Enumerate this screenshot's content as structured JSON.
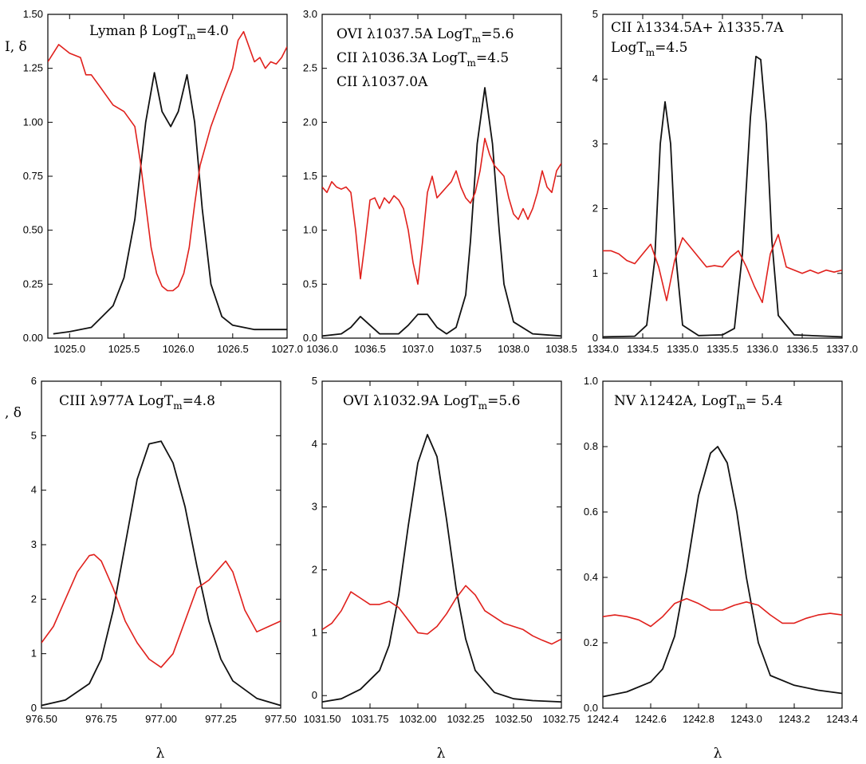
{
  "figure": {
    "ylabel_row1": "I,  δ",
    "ylabel_row2": ",  δ",
    "xlabel": "λ",
    "curve_colors": {
      "intensity": "#111111",
      "delta": "#e0201c"
    }
  },
  "chart_data": [
    {
      "type": "line",
      "annotation": [
        "Lyman β  LogT_m=4.0"
      ],
      "xlim": [
        1024.8,
        1027.0
      ],
      "ylim": [
        0,
        1.5
      ],
      "xticks": [
        1025.0,
        1025.5,
        1026.0,
        1026.5,
        1027.0
      ],
      "xtick_labels": [
        "1025.0",
        "1025.5",
        "1026.0",
        "1026.5",
        "1027.0"
      ],
      "yticks": [
        0,
        0.25,
        0.5,
        0.75,
        1.0,
        1.25,
        1.5
      ],
      "ytick_labels": [
        "0.00",
        "0.25",
        "0.50",
        "0.75",
        "1.00",
        "1.25",
        "1.50"
      ],
      "series": [
        {
          "x": [
            1024.85,
            1025.0,
            1025.2,
            1025.4,
            1025.5,
            1025.6,
            1025.7,
            1025.78,
            1025.85,
            1025.93,
            1026.0,
            1026.08,
            1026.15,
            1026.22,
            1026.3,
            1026.4,
            1026.5,
            1026.7,
            1027.0
          ],
          "y": [
            0.02,
            0.03,
            0.05,
            0.15,
            0.28,
            0.55,
            1.0,
            1.23,
            1.05,
            0.98,
            1.05,
            1.22,
            1.0,
            0.6,
            0.25,
            0.1,
            0.06,
            0.04,
            0.04
          ]
        },
        {
          "x": [
            1024.8,
            1024.9,
            1025.0,
            1025.1,
            1025.15,
            1025.2,
            1025.3,
            1025.4,
            1025.5,
            1025.6,
            1025.65,
            1025.7,
            1025.75,
            1025.8,
            1025.85,
            1025.9,
            1025.95,
            1026.0,
            1026.05,
            1026.1,
            1026.15,
            1026.2,
            1026.3,
            1026.4,
            1026.5,
            1026.55,
            1026.6,
            1026.65,
            1026.7,
            1026.75,
            1026.8,
            1026.85,
            1026.9,
            1026.95,
            1027.0
          ],
          "y": [
            1.28,
            1.36,
            1.32,
            1.3,
            1.22,
            1.22,
            1.15,
            1.08,
            1.05,
            0.98,
            0.82,
            0.62,
            0.42,
            0.3,
            0.24,
            0.22,
            0.22,
            0.24,
            0.3,
            0.42,
            0.62,
            0.8,
            0.98,
            1.12,
            1.25,
            1.38,
            1.42,
            1.35,
            1.28,
            1.3,
            1.25,
            1.28,
            1.27,
            1.3,
            1.35
          ]
        }
      ]
    },
    {
      "type": "line",
      "annotation": [
        "OVI λ1037.5A   LogT_m=5.6",
        "CII λ1036.3A      LogT_m=4.5",
        "CII λ1037.0A"
      ],
      "xlim": [
        1036.0,
        1038.5
      ],
      "ylim": [
        0,
        3.0
      ],
      "xticks": [
        1036.0,
        1036.5,
        1037.0,
        1037.5,
        1038.0,
        1038.5
      ],
      "xtick_labels": [
        "1036.0",
        "1036.5",
        "1037.0",
        "1037.5",
        "1038.0",
        "1038.5"
      ],
      "yticks": [
        0,
        0.5,
        1.0,
        1.5,
        2.0,
        2.5,
        3.0
      ],
      "ytick_labels": [
        "0.0",
        "0.5",
        "1.0",
        "1.5",
        "2.0",
        "2.5",
        "3.0"
      ],
      "series": [
        {
          "x": [
            1036.0,
            1036.2,
            1036.3,
            1036.4,
            1036.5,
            1036.6,
            1036.8,
            1036.9,
            1037.0,
            1037.1,
            1037.2,
            1037.3,
            1037.4,
            1037.5,
            1037.55,
            1037.62,
            1037.7,
            1037.78,
            1037.85,
            1037.9,
            1038.0,
            1038.2,
            1038.5
          ],
          "y": [
            0.02,
            0.04,
            0.1,
            0.2,
            0.12,
            0.04,
            0.04,
            0.12,
            0.22,
            0.22,
            0.1,
            0.04,
            0.1,
            0.4,
            0.9,
            1.8,
            2.32,
            1.8,
            1.0,
            0.5,
            0.15,
            0.04,
            0.02
          ]
        },
        {
          "x": [
            1036.0,
            1036.05,
            1036.1,
            1036.15,
            1036.2,
            1036.25,
            1036.3,
            1036.35,
            1036.4,
            1036.45,
            1036.5,
            1036.55,
            1036.6,
            1036.65,
            1036.7,
            1036.75,
            1036.8,
            1036.85,
            1036.9,
            1036.95,
            1037.0,
            1037.05,
            1037.1,
            1037.15,
            1037.2,
            1037.25,
            1037.3,
            1037.35,
            1037.4,
            1037.45,
            1037.5,
            1037.55,
            1037.6,
            1037.65,
            1037.7,
            1037.75,
            1037.8,
            1037.85,
            1037.9,
            1037.95,
            1038.0,
            1038.05,
            1038.1,
            1038.15,
            1038.2,
            1038.25,
            1038.3,
            1038.35,
            1038.4,
            1038.45,
            1038.5
          ],
          "y": [
            1.4,
            1.35,
            1.45,
            1.4,
            1.38,
            1.4,
            1.35,
            1.0,
            0.55,
            0.9,
            1.28,
            1.3,
            1.2,
            1.3,
            1.25,
            1.32,
            1.28,
            1.2,
            1.0,
            0.7,
            0.5,
            0.9,
            1.35,
            1.5,
            1.3,
            1.35,
            1.4,
            1.45,
            1.55,
            1.4,
            1.3,
            1.25,
            1.35,
            1.55,
            1.85,
            1.7,
            1.6,
            1.55,
            1.5,
            1.3,
            1.15,
            1.1,
            1.2,
            1.1,
            1.2,
            1.35,
            1.55,
            1.4,
            1.35,
            1.55,
            1.62
          ]
        }
      ]
    },
    {
      "type": "line",
      "annotation": [
        "CII λ1334.5A+ λ1335.7A",
        "LogT_m=4.5"
      ],
      "xlim": [
        1334.0,
        1337.0
      ],
      "ylim": [
        0,
        5
      ],
      "xticks": [
        1334.0,
        1334.5,
        1335.0,
        1335.5,
        1336.0,
        1336.5,
        1337.0
      ],
      "xtick_labels": [
        "1334.0",
        "1334.5",
        "1335.0",
        "1335.5",
        "1336.0",
        "1336.5",
        "1337.0"
      ],
      "yticks": [
        0,
        1,
        2,
        3,
        4,
        5
      ],
      "ytick_labels": [
        "0",
        "1",
        "2",
        "3",
        "4",
        "5"
      ],
      "series": [
        {
          "x": [
            1334.0,
            1334.4,
            1334.55,
            1334.65,
            1334.72,
            1334.78,
            1334.85,
            1334.92,
            1335.0,
            1335.2,
            1335.5,
            1335.65,
            1335.75,
            1335.85,
            1335.92,
            1335.98,
            1336.05,
            1336.12,
            1336.2,
            1336.4,
            1337.0
          ],
          "y": [
            0.02,
            0.03,
            0.2,
            1.2,
            3.0,
            3.65,
            3.0,
            1.2,
            0.2,
            0.04,
            0.05,
            0.15,
            1.3,
            3.4,
            4.35,
            4.3,
            3.3,
            1.5,
            0.35,
            0.05,
            0.02
          ]
        },
        {
          "x": [
            1334.0,
            1334.1,
            1334.2,
            1334.3,
            1334.4,
            1334.5,
            1334.6,
            1334.7,
            1334.8,
            1334.9,
            1335.0,
            1335.1,
            1335.2,
            1335.3,
            1335.4,
            1335.5,
            1335.6,
            1335.7,
            1335.8,
            1335.9,
            1336.0,
            1336.1,
            1336.2,
            1336.3,
            1336.4,
            1336.5,
            1336.6,
            1336.7,
            1336.8,
            1336.9,
            1337.0
          ],
          "y": [
            1.35,
            1.35,
            1.3,
            1.2,
            1.15,
            1.3,
            1.45,
            1.1,
            0.58,
            1.2,
            1.55,
            1.4,
            1.25,
            1.1,
            1.12,
            1.1,
            1.25,
            1.35,
            1.1,
            0.8,
            0.55,
            1.3,
            1.6,
            1.1,
            1.05,
            1.0,
            1.05,
            1.0,
            1.05,
            1.02,
            1.05
          ]
        }
      ]
    },
    {
      "type": "line",
      "annotation": [
        "CIII λ977A   LogT_m=4.8"
      ],
      "xlim": [
        976.5,
        977.5
      ],
      "ylim": [
        0,
        6
      ],
      "xticks": [
        976.5,
        976.75,
        977.0,
        977.25,
        977.5
      ],
      "xtick_labels": [
        "976.50",
        "976.75",
        "977.00",
        "977.25",
        "977.50"
      ],
      "yticks": [
        0,
        1,
        2,
        3,
        4,
        5,
        6
      ],
      "ytick_labels": [
        "0",
        "1",
        "2",
        "3",
        "4",
        "5",
        "6"
      ],
      "series": [
        {
          "x": [
            976.5,
            976.6,
            976.7,
            976.75,
            976.8,
            976.85,
            976.9,
            976.95,
            977.0,
            977.05,
            977.1,
            977.15,
            977.2,
            977.25,
            977.3,
            977.4,
            977.5
          ],
          "y": [
            0.05,
            0.15,
            0.45,
            0.9,
            1.8,
            3.0,
            4.2,
            4.85,
            4.9,
            4.5,
            3.7,
            2.6,
            1.6,
            0.9,
            0.5,
            0.18,
            0.05
          ]
        },
        {
          "x": [
            976.5,
            976.55,
            976.6,
            976.65,
            976.7,
            976.72,
            976.75,
            976.8,
            976.85,
            976.9,
            976.95,
            977.0,
            977.05,
            977.1,
            977.15,
            977.2,
            977.25,
            977.27,
            977.3,
            977.35,
            977.4,
            977.45,
            977.5
          ],
          "y": [
            1.2,
            1.5,
            2.0,
            2.5,
            2.8,
            2.82,
            2.7,
            2.2,
            1.6,
            1.2,
            0.9,
            0.75,
            1.0,
            1.6,
            2.2,
            2.35,
            2.6,
            2.7,
            2.5,
            1.8,
            1.4,
            1.5,
            1.6
          ]
        }
      ]
    },
    {
      "type": "line",
      "annotation": [
        "OVI λ1032.9A  LogT_m=5.6"
      ],
      "xlim": [
        1031.5,
        1032.75
      ],
      "ylim": [
        -0.2,
        5
      ],
      "xticks": [
        1031.5,
        1031.75,
        1032.0,
        1032.25,
        1032.5,
        1032.75
      ],
      "xtick_labels": [
        "1031.50",
        "1031.75",
        "1032.00",
        "1032.25",
        "1032.50",
        "1032.75"
      ],
      "yticks": [
        0,
        1,
        2,
        3,
        4,
        5
      ],
      "ytick_labels": [
        "0",
        "1",
        "2",
        "3",
        "4",
        "5"
      ],
      "series": [
        {
          "x": [
            1031.5,
            1031.6,
            1031.7,
            1031.8,
            1031.85,
            1031.9,
            1031.95,
            1032.0,
            1032.05,
            1032.1,
            1032.15,
            1032.2,
            1032.25,
            1032.3,
            1032.4,
            1032.5,
            1032.6,
            1032.75
          ],
          "y": [
            -0.1,
            -0.05,
            0.1,
            0.4,
            0.8,
            1.6,
            2.7,
            3.7,
            4.15,
            3.8,
            2.8,
            1.7,
            0.9,
            0.4,
            0.05,
            -0.05,
            -0.08,
            -0.1
          ]
        },
        {
          "x": [
            1031.5,
            1031.55,
            1031.6,
            1031.65,
            1031.7,
            1031.75,
            1031.8,
            1031.85,
            1031.9,
            1031.95,
            1032.0,
            1032.05,
            1032.1,
            1032.15,
            1032.2,
            1032.25,
            1032.3,
            1032.35,
            1032.4,
            1032.45,
            1032.5,
            1032.55,
            1032.6,
            1032.65,
            1032.7,
            1032.75
          ],
          "y": [
            1.05,
            1.15,
            1.35,
            1.65,
            1.55,
            1.45,
            1.45,
            1.5,
            1.4,
            1.2,
            1.0,
            0.98,
            1.1,
            1.3,
            1.55,
            1.75,
            1.6,
            1.35,
            1.25,
            1.15,
            1.1,
            1.05,
            0.95,
            0.88,
            0.82,
            0.9
          ]
        }
      ]
    },
    {
      "type": "line",
      "annotation": [
        "NV λ1242A,  LogT_m= 5.4"
      ],
      "xlim": [
        1242.4,
        1243.4
      ],
      "ylim": [
        0,
        1.0
      ],
      "xticks": [
        1242.4,
        1242.6,
        1242.8,
        1243.0,
        1243.2,
        1243.4
      ],
      "xtick_labels": [
        "1242.4",
        "1242.6",
        "1242.8",
        "1243.0",
        "1243.2",
        "1243.4"
      ],
      "yticks": [
        0,
        0.2,
        0.4,
        0.6,
        0.8,
        1.0
      ],
      "ytick_labels": [
        "0.0",
        "0.2",
        "0.4",
        "0.6",
        "0.8",
        "1.0"
      ],
      "series": [
        {
          "x": [
            1242.4,
            1242.5,
            1242.6,
            1242.65,
            1242.7,
            1242.75,
            1242.8,
            1242.85,
            1242.88,
            1242.92,
            1242.96,
            1243.0,
            1243.05,
            1243.1,
            1243.2,
            1243.3,
            1243.4
          ],
          "y": [
            0.035,
            0.05,
            0.08,
            0.12,
            0.22,
            0.42,
            0.65,
            0.78,
            0.8,
            0.75,
            0.6,
            0.4,
            0.2,
            0.1,
            0.07,
            0.055,
            0.045
          ]
        },
        {
          "x": [
            1242.4,
            1242.45,
            1242.5,
            1242.55,
            1242.6,
            1242.65,
            1242.7,
            1242.75,
            1242.8,
            1242.85,
            1242.9,
            1242.95,
            1243.0,
            1243.05,
            1243.1,
            1243.15,
            1243.2,
            1243.25,
            1243.3,
            1243.35,
            1243.4
          ],
          "y": [
            0.28,
            0.285,
            0.28,
            0.27,
            0.25,
            0.28,
            0.32,
            0.335,
            0.32,
            0.3,
            0.3,
            0.315,
            0.325,
            0.315,
            0.285,
            0.26,
            0.26,
            0.275,
            0.285,
            0.29,
            0.285
          ]
        }
      ]
    }
  ]
}
